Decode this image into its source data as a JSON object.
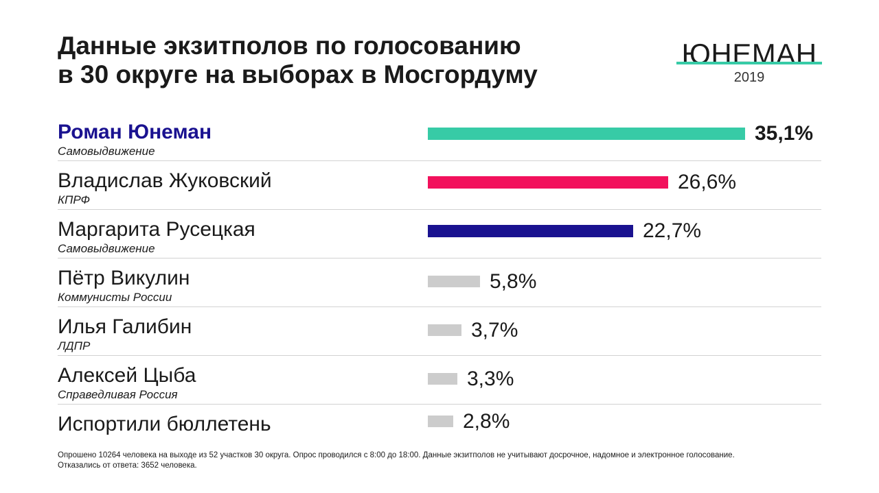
{
  "title": {
    "line1": "Данные экзитполов по голосованию",
    "line2": "в 30 округе на выборах в Мосгордуму"
  },
  "logo": {
    "name": "ЮНЕМАН",
    "year": "2019"
  },
  "colors": {
    "accent_teal": "#37cba6",
    "kprf_red": "#f2115c",
    "dark_blue": "#1a1290",
    "minor_gray": "#cccccc"
  },
  "chart_data": {
    "type": "bar",
    "orientation": "horizontal",
    "categories": [
      "Роман Юнеман",
      "Владислав Жуковский",
      "Маргарита Русецкая",
      "Пётр Викулин",
      "Илья Галибин",
      "Алексей Цыба",
      "Испортили бюллетень"
    ],
    "subtitles": [
      "Самовыдвижение",
      "КПРФ",
      "Самовыдвижение",
      "Коммунисты России",
      "ЛДПР",
      "Справедливая Россия",
      ""
    ],
    "values": [
      35.1,
      26.6,
      22.7,
      5.8,
      3.7,
      3.3,
      2.8
    ],
    "value_labels": [
      "35,1%",
      "26,6%",
      "22,7%",
      "5,8%",
      "3,7%",
      "3,3%",
      "2,8%"
    ],
    "colors": [
      "#37cba6",
      "#f2115c",
      "#1a1290",
      "#cccccc",
      "#cccccc",
      "#cccccc",
      "#cccccc"
    ],
    "highlight_index": 0,
    "grid": false
  },
  "footnote": {
    "line1": "Опрошено 10264 человека на выходе из 52 участков 30 округа. Опрос проводился с 8:00 до 18:00. Данные экзитполов не учитывают досрочное, надомное и электронное голосование.",
    "line2": "Отказались от ответа: 3652 человека."
  }
}
